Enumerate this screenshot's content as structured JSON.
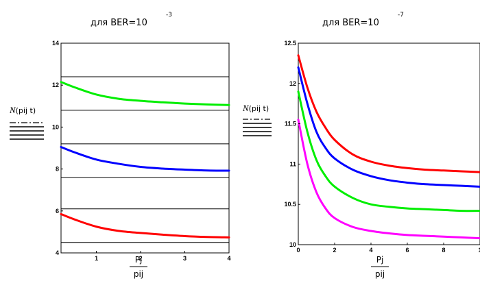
{
  "chart_data": [
    {
      "type": "line",
      "title_prefix": "для BER=10",
      "title_exponent": "-3",
      "ylabel_main": "N",
      "ylabel_args": "(pij t)",
      "xlabel_num": "Pj",
      "xlabel_den": "pij",
      "xlim": [
        0.2,
        4
      ],
      "ylim": [
        4,
        14
      ],
      "x_ticks": [
        "1",
        "2",
        "3",
        "4"
      ],
      "y_ticks": [
        "4",
        "6",
        "8",
        "10",
        "12",
        "14"
      ],
      "hlines": [
        4.5,
        6.1,
        7.6,
        9.2,
        10.8,
        12.4
      ],
      "series": [
        {
          "color": "#00ee00",
          "x": [
            0.2,
            0.5,
            1.0,
            1.5,
            2.0,
            2.5,
            3.0,
            3.5,
            4.0
          ],
          "y": [
            12.15,
            11.9,
            11.55,
            11.35,
            11.25,
            11.18,
            11.12,
            11.08,
            11.05
          ]
        },
        {
          "color": "#0000ff",
          "x": [
            0.2,
            0.5,
            1.0,
            1.5,
            2.0,
            2.5,
            3.0,
            3.5,
            4.0
          ],
          "y": [
            9.05,
            8.8,
            8.45,
            8.25,
            8.1,
            8.02,
            7.97,
            7.93,
            7.92
          ]
        },
        {
          "color": "#ff0000",
          "x": [
            0.2,
            0.5,
            1.0,
            1.5,
            2.0,
            2.5,
            3.0,
            3.5,
            4.0
          ],
          "y": [
            5.85,
            5.6,
            5.25,
            5.05,
            4.95,
            4.87,
            4.8,
            4.76,
            4.74
          ]
        }
      ]
    },
    {
      "type": "line",
      "title_prefix": "для BER=10",
      "title_exponent": "-7",
      "ylabel_main": "N",
      "ylabel_args": "(pij t)",
      "xlabel_num": "Pj",
      "xlabel_den": "pij",
      "xlim": [
        0,
        10
      ],
      "ylim": [
        10,
        12.5
      ],
      "x_ticks": [
        "0",
        "2",
        "4",
        "6",
        "8",
        "1"
      ],
      "y_ticks": [
        "10",
        "10.5",
        "11",
        "11.5",
        "12",
        "12.5"
      ],
      "series": [
        {
          "color": "#ff0000",
          "x": [
            0,
            0.5,
            1,
            1.5,
            2,
            3,
            4,
            5,
            6,
            7,
            8,
            9,
            10
          ],
          "y": [
            12.35,
            11.95,
            11.65,
            11.45,
            11.3,
            11.12,
            11.03,
            10.98,
            10.95,
            10.93,
            10.92,
            10.91,
            10.9
          ]
        },
        {
          "color": "#0000ff",
          "x": [
            0,
            0.5,
            1,
            1.5,
            2,
            3,
            4,
            5,
            6,
            7,
            8,
            9,
            10
          ],
          "y": [
            12.2,
            11.75,
            11.4,
            11.2,
            11.07,
            10.93,
            10.85,
            10.8,
            10.77,
            10.75,
            10.74,
            10.73,
            10.72
          ]
        },
        {
          "color": "#00ee00",
          "x": [
            0,
            0.5,
            1,
            1.5,
            2,
            3,
            4,
            5,
            6,
            7,
            8,
            9,
            10
          ],
          "y": [
            11.9,
            11.4,
            11.05,
            10.85,
            10.72,
            10.58,
            10.5,
            10.47,
            10.45,
            10.44,
            10.43,
            10.42,
            10.42
          ]
        },
        {
          "color": "#ff00ff",
          "x": [
            0,
            0.5,
            1,
            1.5,
            2,
            3,
            4,
            5,
            6,
            7,
            8,
            9,
            10
          ],
          "y": [
            11.55,
            11.0,
            10.65,
            10.45,
            10.33,
            10.22,
            10.17,
            10.14,
            10.12,
            10.11,
            10.1,
            10.09,
            10.08
          ]
        }
      ]
    }
  ]
}
